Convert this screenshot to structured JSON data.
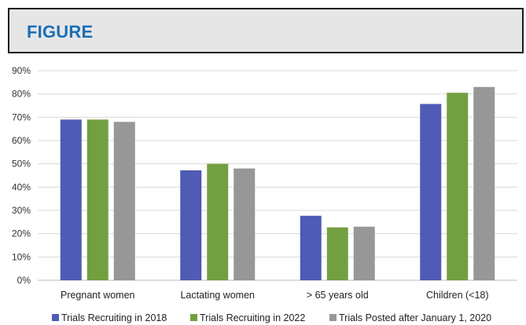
{
  "header": {
    "title": "FIGURE"
  },
  "chart_data": {
    "type": "bar",
    "categories": [
      "Pregnant women",
      "Lactating women",
      "> 65 years old",
      "Children (<18)"
    ],
    "series": [
      {
        "name": "Trials Recruiting in 2018",
        "color": "#4f5bb5",
        "values": [
          69,
          47.2,
          27.7,
          75.7
        ]
      },
      {
        "name": "Trials Recruiting in 2022",
        "color": "#72a040",
        "values": [
          69,
          50,
          22.7,
          80.5
        ]
      },
      {
        "name": "Trials Posted after January 1, 2020",
        "color": "#979797",
        "values": [
          68,
          48,
          23,
          83
        ]
      }
    ],
    "yticks": [
      "0%",
      "10%",
      "20%",
      "30%",
      "40%",
      "50%",
      "60%",
      "70%",
      "80%",
      "90%"
    ],
    "ylim": [
      0,
      90
    ],
    "grid": true,
    "legend_position": "bottom"
  }
}
